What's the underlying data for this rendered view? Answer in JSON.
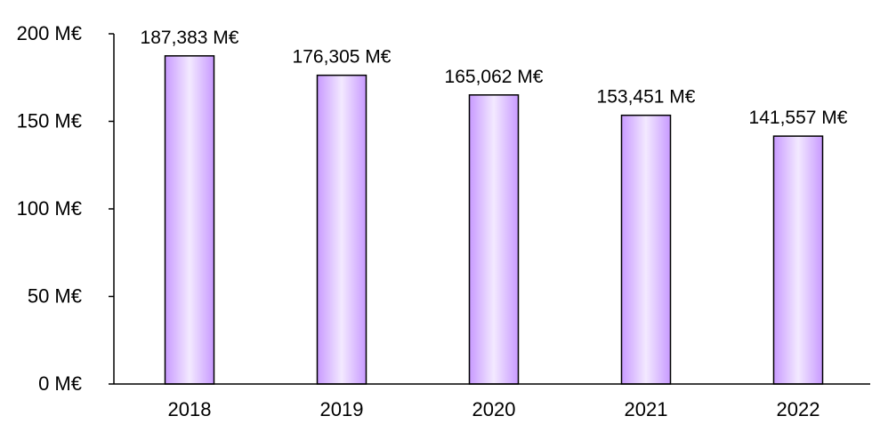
{
  "chart_data": {
    "type": "bar",
    "categories": [
      "2018",
      "2019",
      "2020",
      "2021",
      "2022"
    ],
    "values": [
      187.383,
      176.305,
      165.062,
      153.451,
      141.557
    ],
    "data_labels": [
      "187,383 M€",
      "176,305 M€",
      "165,062 M€",
      "153,451 M€",
      "141,557 M€"
    ],
    "y_ticks": [
      0,
      50,
      100,
      150,
      200
    ],
    "y_tick_labels": [
      "0 M€",
      "50 M€",
      "100 M€",
      "150 M€",
      "200 M€"
    ],
    "ylim": [
      0,
      200
    ],
    "grid": false,
    "legend": "none",
    "bar_color_edge": "#c89aff",
    "bar_color_center": "#f3e9ff",
    "bar_stroke": "#000000"
  }
}
